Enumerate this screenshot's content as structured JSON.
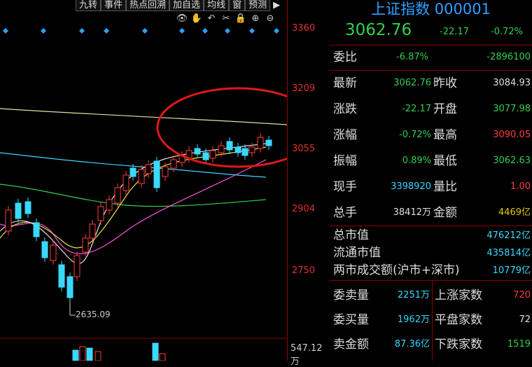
{
  "toolbar": {
    "buttons": [
      "九转",
      "事件",
      "热点回溯",
      "加自选",
      "均线",
      "窗",
      "预测"
    ],
    "icons": [
      "eye-icon",
      "hand-icon",
      "undo-icon",
      "scissors-icon",
      "lock-icon",
      "zoom-in-icon",
      "zoom-out-icon"
    ]
  },
  "axis": {
    "price_labels": [
      "3360",
      "3209",
      "3055",
      "2904",
      "2750"
    ],
    "volume_label": "547.12万",
    "low_marker": "2635.09"
  },
  "header": {
    "title": "上证指数 000001",
    "price": "3062.76",
    "change": "-22.17",
    "change_pct": "-0.72%"
  },
  "weibi": {
    "label": "委比",
    "pct": "-6.87%",
    "diff": "-2896100"
  },
  "quote_rows": [
    {
      "l1": "最新",
      "v1": "3062.76",
      "l2": "昨收",
      "v2": "3084.93"
    },
    {
      "l1": "涨跌",
      "v1": "-22.17",
      "l2": "开盘",
      "v2": "3077.98"
    },
    {
      "l1": "涨幅",
      "v1": "-0.72%",
      "l2": "最高",
      "v2": "3090.05"
    },
    {
      "l1": "振幅",
      "v1": "0.89%",
      "l2": "最低",
      "v2": "3062.63"
    },
    {
      "l1": "现手",
      "v1": "3398920",
      "l2": "量比",
      "v2": "1.00"
    },
    {
      "l1": "总手",
      "v1": "38412万",
      "l2": "金额",
      "v2": "4469亿"
    }
  ],
  "market": [
    {
      "label": "总市值",
      "value": "476212亿"
    },
    {
      "label": "流通市值",
      "value": "435814亿"
    },
    {
      "label": "两市成交额(沪市+深市)",
      "value": "10779亿"
    }
  ],
  "breadth": [
    {
      "l1": "委卖量",
      "v1": "2251万",
      "l2": "上涨家数",
      "v2": "720"
    },
    {
      "l1": "委买量",
      "v1": "1962万",
      "l2": "平盘家数",
      "v2": "72"
    },
    {
      "l1": "卖金额",
      "v1": "87.36亿",
      "l2": "下跌家数",
      "v2": "1519"
    }
  ]
}
